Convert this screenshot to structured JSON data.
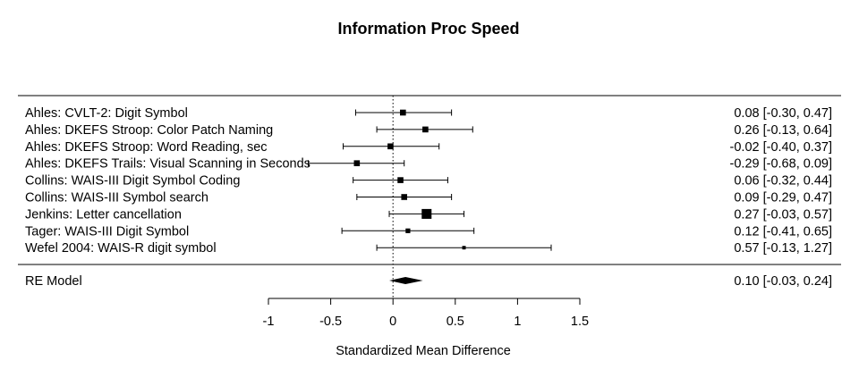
{
  "chart_data": {
    "type": "forest",
    "title": "Information Proc Speed",
    "xlabel": "Standardized Mean Difference",
    "xlim": [
      -1,
      1.5
    ],
    "xticks": [
      -1,
      -0.5,
      0,
      0.5,
      1,
      1.5
    ],
    "xtick_labels": [
      "-1",
      "-0.5",
      "0",
      "0.5",
      "1",
      "1.5"
    ],
    "reference_line": 0,
    "studies": [
      {
        "label": "Ahles: CVLT-2: Digit Symbol",
        "estimate": 0.08,
        "ci_low": -0.3,
        "ci_high": 0.47,
        "ci_text": "0.08 [-0.30, 0.47]",
        "weight": 0.45
      },
      {
        "label": "Ahles: DKEFS Stroop: Color Patch Naming",
        "estimate": 0.26,
        "ci_low": -0.13,
        "ci_high": 0.64,
        "ci_text": "0.26 [-0.13, 0.64]",
        "weight": 0.45
      },
      {
        "label": "Ahles: DKEFS Stroop: Word Reading, sec",
        "estimate": -0.02,
        "ci_low": -0.4,
        "ci_high": 0.37,
        "ci_text": "-0.02 [-0.40, 0.37]",
        "weight": 0.45
      },
      {
        "label": "Ahles: DKEFS Trails: Visual Scanning in Seconds",
        "estimate": -0.29,
        "ci_low": -0.68,
        "ci_high": 0.09,
        "ci_text": "-0.29 [-0.68, 0.09]",
        "weight": 0.45
      },
      {
        "label": "Collins: WAIS-III Digit Symbol Coding",
        "estimate": 0.06,
        "ci_low": -0.32,
        "ci_high": 0.44,
        "ci_text": "0.06 [-0.32, 0.44]",
        "weight": 0.45
      },
      {
        "label": "Collins: WAIS-III Symbol search",
        "estimate": 0.09,
        "ci_low": -0.29,
        "ci_high": 0.47,
        "ci_text": "0.09 [-0.29, 0.47]",
        "weight": 0.45
      },
      {
        "label": "Jenkins: Letter cancellation",
        "estimate": 0.27,
        "ci_low": -0.03,
        "ci_high": 0.57,
        "ci_text": "0.27 [-0.03, 0.57]",
        "weight": 1.0
      },
      {
        "label": "Tager: WAIS-III Digit Symbol",
        "estimate": 0.12,
        "ci_low": -0.41,
        "ci_high": 0.65,
        "ci_text": "0.12 [-0.41, 0.65]",
        "weight": 0.28
      },
      {
        "label": "Wefel 2004: WAIS-R digit symbol",
        "estimate": 0.57,
        "ci_low": -0.13,
        "ci_high": 1.27,
        "ci_text": "0.57 [-0.13, 1.27]",
        "weight": 0.12
      }
    ],
    "summary": {
      "label": "RE Model",
      "estimate": 0.1,
      "ci_low": -0.03,
      "ci_high": 0.24,
      "ci_text": "0.10 [-0.03, 0.24]"
    }
  }
}
